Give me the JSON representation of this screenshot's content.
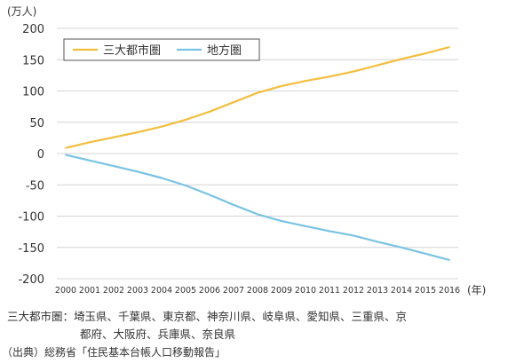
{
  "chart_data": {
    "type": "line",
    "title": "",
    "xlabel": "(年)",
    "ylabel": "(万人)",
    "x": [
      2000,
      2001,
      2002,
      2003,
      2004,
      2005,
      2006,
      2007,
      2008,
      2009,
      2010,
      2011,
      2012,
      2013,
      2014,
      2015,
      2016
    ],
    "ylim": [
      -200,
      200
    ],
    "yticks": [
      200,
      150,
      100,
      50,
      0,
      -50,
      -100,
      -150,
      -200
    ],
    "grid": true,
    "legend_position": "top-left",
    "series": [
      {
        "name": "三大都市圏",
        "color": "#f2be3d",
        "values": [
          9,
          18,
          26,
          34,
          43,
          54,
          67,
          82,
          97,
          108,
          116,
          123,
          131,
          141,
          151,
          160,
          170
        ]
      },
      {
        "name": "地方圏",
        "color": "#79c3e3",
        "values": [
          -2,
          -11,
          -20,
          -29,
          -39,
          -51,
          -66,
          -82,
          -97,
          -108,
          -116,
          -124,
          -131,
          -141,
          -150,
          -160,
          -170
        ]
      }
    ]
  },
  "labels": {
    "y_unit": "(万人)",
    "x_unit": "(年)",
    "note_line1": "三大都市圏：埼玉県、千葉県、東京都、神奈川県、岐阜県、愛知県、三重県、京",
    "note_line2": "都府、大阪府、兵庫県、奈良県",
    "source": "（出典）総務省「住民基本台帳人口移動報告」"
  }
}
